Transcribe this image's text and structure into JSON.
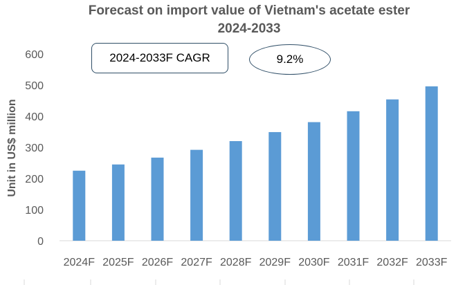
{
  "chart_data": {
    "type": "bar",
    "title_lines": [
      "Forecast on import value of Vietnam's acetate ester",
      "2024-2033"
    ],
    "xlabel": "",
    "ylabel": "Unit in US$ million",
    "categories": [
      "2024F",
      "2025F",
      "2026F",
      "2027F",
      "2028F",
      "2029F",
      "2030F",
      "2031F",
      "2032F",
      "2033F"
    ],
    "values": [
      225,
      245,
      267,
      292,
      320,
      349,
      381,
      416,
      454,
      496
    ],
    "ylim": [
      0,
      600
    ],
    "yticks": [
      "0",
      "100",
      "200",
      "300",
      "400",
      "500",
      "600"
    ],
    "grid": false,
    "bar_color": "#5b9bd5",
    "annotations": {
      "cagr_label": "2024-2033F CAGR",
      "cagr_value": "9.2%"
    }
  }
}
